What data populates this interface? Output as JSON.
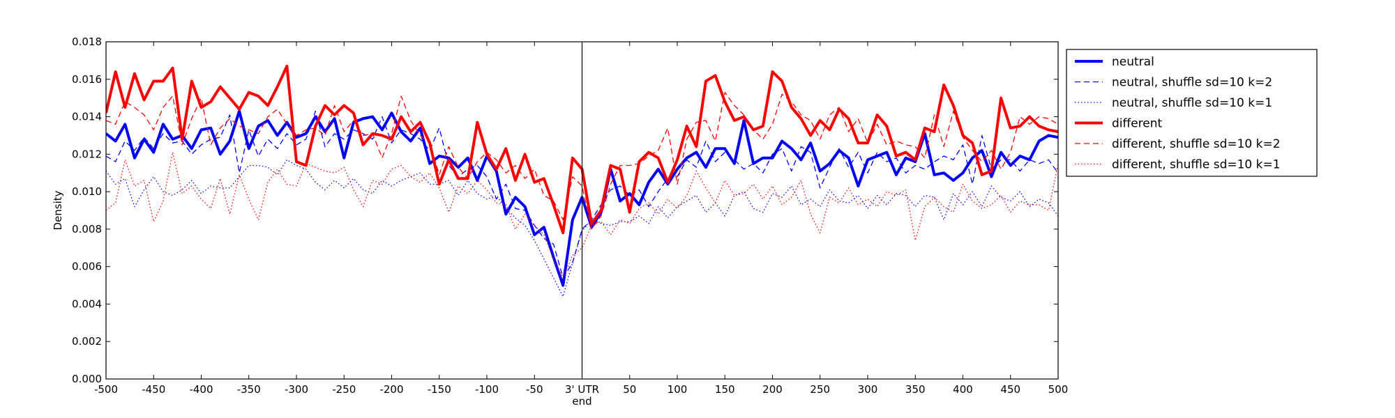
{
  "chart_data": {
    "type": "line",
    "title": "",
    "xlabel": "",
    "ylabel": "Density",
    "xlim": [
      -500,
      500
    ],
    "ylim": [
      0,
      0.018
    ],
    "grid": false,
    "legend_position": "outside-top-right",
    "x_ticks": [
      -500,
      -450,
      -400,
      -350,
      -300,
      -250,
      -200,
      -150,
      -100,
      -50,
      0,
      50,
      100,
      150,
      200,
      250,
      300,
      350,
      400,
      450,
      500
    ],
    "x_tick_labels": [
      "-500",
      "-450",
      "-400",
      "-350",
      "-300",
      "-250",
      "-200",
      "-150",
      "-100",
      "-50",
      "3' UTR",
      "50",
      "100",
      "150",
      "200",
      "250",
      "300",
      "350",
      "400",
      "450",
      "500"
    ],
    "x_sublabel": "end",
    "y_ticks": [
      0,
      0.002,
      0.004,
      0.006,
      0.008,
      0.01,
      0.012,
      0.014,
      0.016,
      0.018
    ],
    "y_tick_labels": [
      "0.000",
      "0.002",
      "0.004",
      "0.006",
      "0.008",
      "0.010",
      "0.012",
      "0.014",
      "0.016",
      "0.018"
    ],
    "marker_line_x": 0,
    "x": [
      -500,
      -490,
      -480,
      -470,
      -460,
      -450,
      -440,
      -430,
      -420,
      -410,
      -400,
      -390,
      -380,
      -370,
      -360,
      -350,
      -340,
      -330,
      -320,
      -310,
      -300,
      -290,
      -280,
      -270,
      -260,
      -250,
      -240,
      -230,
      -220,
      -210,
      -200,
      -190,
      -180,
      -170,
      -160,
      -150,
      -140,
      -130,
      -120,
      -110,
      -100,
      -90,
      -80,
      -70,
      -60,
      -50,
      -40,
      -30,
      -20,
      -10,
      0,
      10,
      20,
      30,
      40,
      50,
      60,
      70,
      80,
      90,
      100,
      110,
      120,
      130,
      140,
      150,
      160,
      170,
      180,
      190,
      200,
      210,
      220,
      230,
      240,
      250,
      260,
      270,
      280,
      290,
      300,
      310,
      320,
      330,
      340,
      350,
      360,
      370,
      380,
      390,
      400,
      410,
      420,
      430,
      440,
      450,
      460,
      470,
      480,
      490,
      500
    ],
    "series": [
      {
        "name": "neutral",
        "color": "#0000ff",
        "style": "solid",
        "values": [
          0.0131,
          0.0127,
          0.0136,
          0.0118,
          0.0128,
          0.0121,
          0.0136,
          0.0128,
          0.013,
          0.0123,
          0.0133,
          0.0134,
          0.012,
          0.0127,
          0.0143,
          0.0123,
          0.0135,
          0.0138,
          0.013,
          0.0137,
          0.0129,
          0.0131,
          0.014,
          0.0132,
          0.0139,
          0.0118,
          0.0137,
          0.0139,
          0.014,
          0.0133,
          0.0142,
          0.0132,
          0.0127,
          0.0134,
          0.0115,
          0.0119,
          0.0118,
          0.0113,
          0.0118,
          0.0106,
          0.0119,
          0.0111,
          0.0088,
          0.0097,
          0.0092,
          0.0077,
          0.0081,
          0.0065,
          0.005,
          0.0085,
          0.0097,
          0.0081,
          0.0089,
          0.0112,
          0.0095,
          0.0099,
          0.0093,
          0.0105,
          0.0112,
          0.0104,
          0.0112,
          0.0118,
          0.0121,
          0.0113,
          0.0123,
          0.0123,
          0.0115,
          0.0138,
          0.0115,
          0.0118,
          0.0118,
          0.0127,
          0.0123,
          0.0117,
          0.0126,
          0.0111,
          0.0115,
          0.0122,
          0.0118,
          0.0103,
          0.0117,
          0.0119,
          0.0121,
          0.0109,
          0.0118,
          0.0116,
          0.0131,
          0.0109,
          0.011,
          0.0106,
          0.011,
          0.0118,
          0.0122,
          0.0108,
          0.0121,
          0.0114,
          0.0119,
          0.0117,
          0.0127,
          0.013,
          0.0129
        ]
      },
      {
        "name": "neutral, shuffle sd=10 k=2",
        "color": "#0000ff",
        "style": "dashed",
        "values": [
          0.0119,
          0.0116,
          0.0127,
          0.0122,
          0.0129,
          0.0123,
          0.0131,
          0.0126,
          0.0127,
          0.012,
          0.0125,
          0.0128,
          0.0129,
          0.0141,
          0.011,
          0.0133,
          0.0119,
          0.0128,
          0.0123,
          0.0131,
          0.0125,
          0.0128,
          0.0143,
          0.0124,
          0.0131,
          0.0128,
          0.0133,
          0.0131,
          0.0128,
          0.014,
          0.0126,
          0.0133,
          0.0131,
          0.0128,
          0.0122,
          0.0134,
          0.0114,
          0.0108,
          0.0112,
          0.0114,
          0.0108,
          0.0096,
          0.0104,
          0.0091,
          0.009,
          0.0082,
          0.0075,
          0.0072,
          0.0054,
          0.0062,
          0.008,
          0.0085,
          0.0093,
          0.0101,
          0.0103,
          0.0098,
          0.0101,
          0.0092,
          0.01,
          0.0107,
          0.0108,
          0.0117,
          0.0113,
          0.0127,
          0.0116,
          0.0121,
          0.0117,
          0.0112,
          0.0115,
          0.011,
          0.012,
          0.0123,
          0.0111,
          0.0124,
          0.0121,
          0.0102,
          0.0113,
          0.0123,
          0.0113,
          0.0121,
          0.011,
          0.0121,
          0.0116,
          0.0118,
          0.011,
          0.0114,
          0.0112,
          0.0116,
          0.0119,
          0.0117,
          0.0125,
          0.0104,
          0.013,
          0.0112,
          0.0117,
          0.0117,
          0.0111,
          0.0117,
          0.0115,
          0.0117,
          0.011
        ]
      },
      {
        "name": "neutral, shuffle sd=10 k=1",
        "color": "#0000ff",
        "style": "dotted",
        "values": [
          0.0111,
          0.0104,
          0.0107,
          0.0092,
          0.0101,
          0.0108,
          0.01,
          0.0098,
          0.0101,
          0.0106,
          0.0099,
          0.0103,
          0.0102,
          0.0102,
          0.0108,
          0.0114,
          0.0114,
          0.0113,
          0.0109,
          0.0117,
          0.0114,
          0.0112,
          0.0105,
          0.0101,
          0.0106,
          0.0102,
          0.0107,
          0.0101,
          0.0099,
          0.0106,
          0.0103,
          0.0106,
          0.0108,
          0.011,
          0.0104,
          0.0104,
          0.0106,
          0.0098,
          0.0106,
          0.0099,
          0.0096,
          0.0098,
          0.0091,
          0.0086,
          0.0082,
          0.0074,
          0.0064,
          0.0054,
          0.0044,
          0.0062,
          0.0079,
          0.0085,
          0.0083,
          0.0082,
          0.0084,
          0.0084,
          0.0087,
          0.0083,
          0.0092,
          0.0086,
          0.0092,
          0.0095,
          0.0098,
          0.0089,
          0.0094,
          0.0087,
          0.0098,
          0.01,
          0.0091,
          0.0089,
          0.0099,
          0.0097,
          0.0103,
          0.0093,
          0.0096,
          0.0092,
          0.0101,
          0.0095,
          0.0094,
          0.0098,
          0.0091,
          0.0098,
          0.0093,
          0.0099,
          0.0098,
          0.0092,
          0.0098,
          0.0097,
          0.0085,
          0.0099,
          0.0093,
          0.01,
          0.0092,
          0.0103,
          0.0097,
          0.0095,
          0.01,
          0.0092,
          0.0096,
          0.0094,
          0.0087
        ]
      },
      {
        "name": "different",
        "color": "#ff0000",
        "style": "solid",
        "values": [
          0.0142,
          0.0164,
          0.0145,
          0.0163,
          0.0149,
          0.0159,
          0.0159,
          0.0166,
          0.0128,
          0.0159,
          0.0145,
          0.0148,
          0.0156,
          0.015,
          0.0144,
          0.0153,
          0.0151,
          0.0146,
          0.0156,
          0.0167,
          0.0116,
          0.0114,
          0.0135,
          0.0146,
          0.0141,
          0.0146,
          0.0142,
          0.0125,
          0.0131,
          0.013,
          0.0128,
          0.014,
          0.0132,
          0.0137,
          0.0126,
          0.0104,
          0.0117,
          0.0107,
          0.0107,
          0.0137,
          0.012,
          0.0112,
          0.0123,
          0.0106,
          0.012,
          0.0105,
          0.0107,
          0.0093,
          0.0078,
          0.0118,
          0.0112,
          0.0083,
          0.009,
          0.0114,
          0.0112,
          0.0089,
          0.0116,
          0.0121,
          0.0118,
          0.0105,
          0.0117,
          0.0135,
          0.0124,
          0.0159,
          0.0162,
          0.0148,
          0.0138,
          0.014,
          0.0133,
          0.0135,
          0.0164,
          0.0159,
          0.0145,
          0.0139,
          0.013,
          0.0138,
          0.0133,
          0.0144,
          0.0139,
          0.0126,
          0.0126,
          0.0141,
          0.0135,
          0.0119,
          0.0121,
          0.0117,
          0.0134,
          0.0132,
          0.0157,
          0.0146,
          0.013,
          0.0126,
          0.0109,
          0.0111,
          0.015,
          0.0134,
          0.0135,
          0.014,
          0.0135,
          0.0133,
          0.0132
        ]
      },
      {
        "name": "different, shuffle sd=10 k=2",
        "color": "#ff0000",
        "style": "dashed",
        "values": [
          0.0138,
          0.0136,
          0.0148,
          0.0145,
          0.0141,
          0.0133,
          0.0145,
          0.0151,
          0.0125,
          0.0139,
          0.015,
          0.0125,
          0.0134,
          0.0139,
          0.0135,
          0.0133,
          0.0131,
          0.014,
          0.0144,
          0.0136,
          0.013,
          0.0133,
          0.0134,
          0.013,
          0.0146,
          0.0132,
          0.0138,
          0.013,
          0.0131,
          0.0118,
          0.0131,
          0.0151,
          0.0138,
          0.013,
          0.0126,
          0.0109,
          0.0124,
          0.0113,
          0.0107,
          0.0116,
          0.0121,
          0.0117,
          0.011,
          0.0114,
          0.0107,
          0.0112,
          0.0098,
          0.0095,
          0.0085,
          0.0108,
          0.0103,
          0.008,
          0.0087,
          0.0104,
          0.0114,
          0.0114,
          0.0115,
          0.0119,
          0.0122,
          0.0134,
          0.0104,
          0.0128,
          0.0137,
          0.0138,
          0.0127,
          0.0153,
          0.0146,
          0.0141,
          0.0133,
          0.0128,
          0.0136,
          0.0152,
          0.0148,
          0.0141,
          0.0138,
          0.0128,
          0.0141,
          0.0145,
          0.0132,
          0.0139,
          0.0126,
          0.0136,
          0.0125,
          0.0127,
          0.0125,
          0.0124,
          0.0118,
          0.0141,
          0.0124,
          0.0143,
          0.0129,
          0.0122,
          0.0116,
          0.0122,
          0.0112,
          0.0121,
          0.014,
          0.0136,
          0.014,
          0.0139,
          0.0136
        ]
      },
      {
        "name": "different, shuffle sd=10 k=1",
        "color": "#ff0000",
        "style": "dotted",
        "values": [
          0.009,
          0.0094,
          0.0117,
          0.0103,
          0.0106,
          0.0084,
          0.0095,
          0.0121,
          0.0099,
          0.0103,
          0.0096,
          0.0091,
          0.0107,
          0.0088,
          0.0109,
          0.0096,
          0.0085,
          0.0105,
          0.0112,
          0.0104,
          0.0103,
          0.0115,
          0.0113,
          0.0111,
          0.011,
          0.0113,
          0.0101,
          0.0092,
          0.0106,
          0.0104,
          0.0112,
          0.0114,
          0.0108,
          0.0105,
          0.011,
          0.0102,
          0.0089,
          0.0103,
          0.0099,
          0.0106,
          0.0101,
          0.0094,
          0.0093,
          0.008,
          0.0088,
          0.0082,
          0.0077,
          0.0064,
          0.0054,
          0.0066,
          0.007,
          0.0082,
          0.0084,
          0.0077,
          0.0085,
          0.0083,
          0.0091,
          0.0094,
          0.0088,
          0.0096,
          0.0091,
          0.0098,
          0.0111,
          0.0102,
          0.0094,
          0.0106,
          0.0098,
          0.0099,
          0.0104,
          0.0096,
          0.0103,
          0.0093,
          0.0097,
          0.0106,
          0.0088,
          0.0078,
          0.0097,
          0.0094,
          0.0102,
          0.0093,
          0.0096,
          0.0092,
          0.01,
          0.0098,
          0.0101,
          0.0074,
          0.0092,
          0.0097,
          0.0092,
          0.0089,
          0.0104,
          0.0095,
          0.0091,
          0.0093,
          0.0098,
          0.0089,
          0.0095,
          0.0093,
          0.0093,
          0.009,
          0.0115
        ]
      }
    ]
  }
}
